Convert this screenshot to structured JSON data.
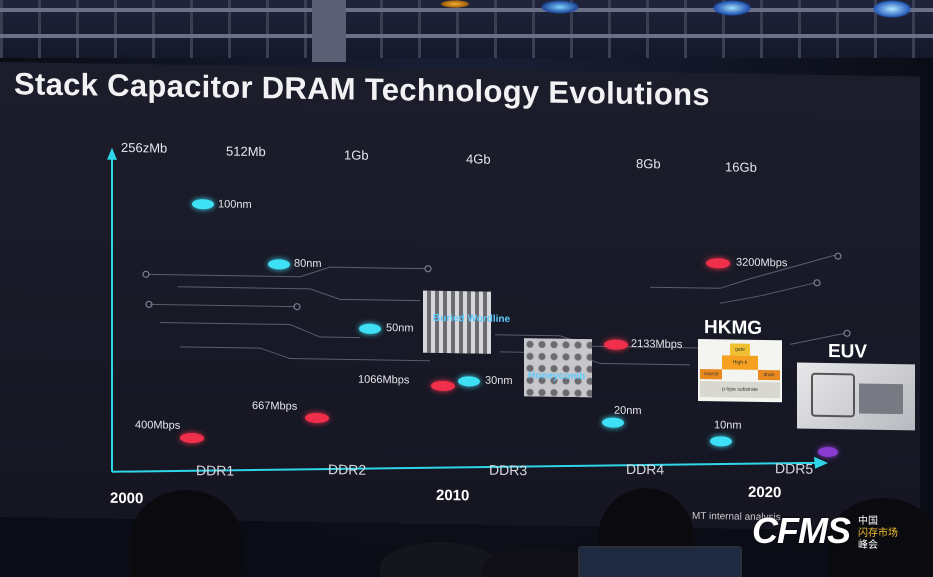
{
  "slide": {
    "title": "Stack Capacitor DRAM Technology Evolutions",
    "density_labels": [
      "256zMb",
      "512Mb",
      "1Gb",
      "4Gb",
      "8Gb",
      "16Gb"
    ],
    "ddr_labels": [
      "DDR1",
      "DDR2",
      "DDR3",
      "DDR4",
      "DDR5"
    ],
    "years": [
      "2000",
      "2010",
      "2020"
    ],
    "node_labels": [
      "100nm",
      "80nm",
      "50nm",
      "30nm",
      "20nm",
      "10nm"
    ],
    "speed_labels": [
      "400Mbps",
      "667Mbps",
      "1066Mbps",
      "2133Mbps",
      "3200Mbps"
    ],
    "tech_labels": {
      "buried_wordline": "Buried Wordline",
      "honeycomb": "Honeycomb",
      "hkmg": "HKMG",
      "euv": "EUV"
    },
    "hkmg_inner": {
      "gate": "gate",
      "highk": "High-k",
      "source": "source",
      "drain": "drain",
      "substrate": "p-type substrate"
    },
    "footnote": "MT internal analysis"
  },
  "watermark": {
    "brand": "CFMS",
    "line1": "中国",
    "line2": "闪存市场",
    "line3": "峰会"
  },
  "colors": {
    "node_dot": "#3ee0f5",
    "speed_dot": "#f0304a",
    "ddr5_dot": "#8a3ad0",
    "axis": "#2fd6e8"
  }
}
